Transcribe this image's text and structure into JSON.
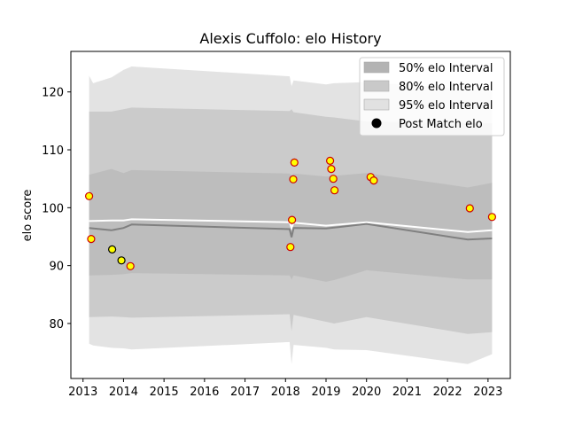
{
  "chart_data": {
    "type": "line",
    "title": "Alexis Cuffolo: elo History",
    "xlabel": "",
    "ylabel": "elo score",
    "xlim": [
      2012.7,
      2023.55
    ],
    "ylim": [
      70.5,
      127
    ],
    "x_ticks": [
      "2013",
      "2014",
      "2015",
      "2016",
      "2017",
      "2018",
      "2019",
      "2020",
      "2021",
      "2022",
      "2023"
    ],
    "y_ticks": [
      "80",
      "90",
      "100",
      "110",
      "120"
    ],
    "grid": false,
    "legend_position": "top-right",
    "legend": [
      {
        "label": "50% elo Interval",
        "kind": "patch",
        "color": "#b3b3b3"
      },
      {
        "label": "80% elo Interval",
        "kind": "patch",
        "color": "#c9c9c9"
      },
      {
        "label": "95% elo Interval",
        "kind": "patch",
        "color": "#e1e1e1"
      },
      {
        "label": "Post Match elo",
        "kind": "marker",
        "color": "#000000"
      }
    ],
    "bands": [
      {
        "name": "95% elo Interval",
        "color": "#e3e3e3",
        "x": [
          2013.15,
          2013.25,
          2013.7,
          2014.0,
          2014.2,
          2018.1,
          2018.15,
          2018.2,
          2019.0,
          2019.2,
          2020.0,
          2022.5,
          2023.1
        ],
        "upper": [
          122.8,
          121.5,
          122.5,
          123.8,
          124.4,
          122.7,
          121.0,
          122.0,
          121.3,
          121.5,
          121.7,
          120.5,
          120.1
        ],
        "lower": [
          76.5,
          76.2,
          75.8,
          75.7,
          75.5,
          76.8,
          73.0,
          76.3,
          75.8,
          75.5,
          75.4,
          73.0,
          74.7
        ]
      },
      {
        "name": "80% elo Interval",
        "color": "#cbcbcb",
        "x": [
          2013.15,
          2013.7,
          2014.0,
          2014.2,
          2018.1,
          2018.15,
          2018.2,
          2019.0,
          2019.2,
          2020.0,
          2022.5,
          2023.1
        ],
        "upper": [
          116.6,
          116.6,
          117.0,
          117.3,
          116.7,
          117.0,
          116.5,
          115.7,
          115.6,
          114.9,
          114.6,
          114.6
        ],
        "lower": [
          81.1,
          81.2,
          81.1,
          81.0,
          81.6,
          78.7,
          81.5,
          80.3,
          80.0,
          81.1,
          78.2,
          78.5
        ]
      },
      {
        "name": "50% elo Interval",
        "color": "#bdbdbd",
        "x": [
          2013.15,
          2013.7,
          2014.0,
          2014.2,
          2018.1,
          2018.15,
          2018.2,
          2019.0,
          2019.2,
          2020.0,
          2022.5,
          2023.1
        ],
        "upper": [
          105.7,
          106.7,
          106.0,
          106.5,
          105.9,
          105.6,
          105.9,
          105.4,
          105.5,
          106.0,
          103.5,
          104.3
        ],
        "lower": [
          88.3,
          88.4,
          88.5,
          88.7,
          88.3,
          87.6,
          88.3,
          87.2,
          87.5,
          89.2,
          87.6,
          87.6
        ]
      }
    ],
    "lines": [
      {
        "name": "median",
        "color": "#ffffff",
        "x": [
          2013.15,
          2013.7,
          2014.0,
          2014.2,
          2018.1,
          2018.15,
          2018.2,
          2019.0,
          2020.0,
          2022.5,
          2023.1
        ],
        "y": [
          97.7,
          97.8,
          97.8,
          98.0,
          97.5,
          96.5,
          97.4,
          96.9,
          97.5,
          95.8,
          96.1
        ]
      },
      {
        "name": "mean",
        "color": "#808080",
        "x": [
          2013.15,
          2013.7,
          2014.0,
          2014.2,
          2018.1,
          2018.15,
          2018.2,
          2019.0,
          2020.0,
          2022.5,
          2023.1
        ],
        "y": [
          96.5,
          96.1,
          96.5,
          97.1,
          96.3,
          94.9,
          96.5,
          96.4,
          97.2,
          94.5,
          94.7
        ]
      }
    ],
    "points": [
      {
        "x": 2013.15,
        "y": 102.0,
        "fill": "#ffff00",
        "edge": "#cc0000"
      },
      {
        "x": 2013.2,
        "y": 94.6,
        "fill": "#ffff00",
        "edge": "#cc0000"
      },
      {
        "x": 2013.72,
        "y": 92.8,
        "fill": "#ffff00",
        "edge": "#000000"
      },
      {
        "x": 2013.95,
        "y": 90.9,
        "fill": "#ffff00",
        "edge": "#000000"
      },
      {
        "x": 2014.17,
        "y": 89.9,
        "fill": "#ffff00",
        "edge": "#cc0000"
      },
      {
        "x": 2018.12,
        "y": 93.2,
        "fill": "#ffff00",
        "edge": "#cc0000"
      },
      {
        "x": 2018.16,
        "y": 97.9,
        "fill": "#ffff00",
        "edge": "#cc0000"
      },
      {
        "x": 2018.19,
        "y": 104.9,
        "fill": "#ffff00",
        "edge": "#cc0000"
      },
      {
        "x": 2018.22,
        "y": 107.8,
        "fill": "#ffff00",
        "edge": "#cc0000"
      },
      {
        "x": 2019.1,
        "y": 108.1,
        "fill": "#ffff00",
        "edge": "#cc0000"
      },
      {
        "x": 2019.13,
        "y": 106.7,
        "fill": "#ffff00",
        "edge": "#cc0000"
      },
      {
        "x": 2019.18,
        "y": 105.0,
        "fill": "#ffff00",
        "edge": "#cc0000"
      },
      {
        "x": 2019.21,
        "y": 103.0,
        "fill": "#ffff00",
        "edge": "#cc0000"
      },
      {
        "x": 2020.1,
        "y": 105.3,
        "fill": "#ffff00",
        "edge": "#cc0000"
      },
      {
        "x": 2020.18,
        "y": 104.7,
        "fill": "#ffff00",
        "edge": "#cc0000"
      },
      {
        "x": 2022.55,
        "y": 99.9,
        "fill": "#ffff00",
        "edge": "#cc0000"
      },
      {
        "x": 2023.1,
        "y": 98.4,
        "fill": "#ffff00",
        "edge": "#cc0000"
      }
    ]
  }
}
